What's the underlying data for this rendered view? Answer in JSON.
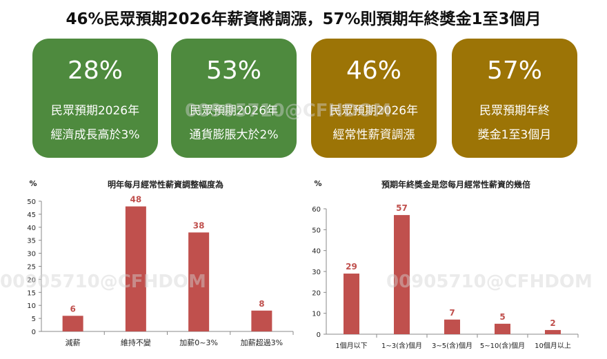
{
  "title": "46%民眾預期2026年薪資將調漲，57%則預期年終獎金1至3個月",
  "cards": [
    {
      "pct": "28%",
      "line1": "民眾預期2026年",
      "line2": "經濟成長高於3%",
      "color": "#4e8a3e"
    },
    {
      "pct": "53%",
      "line1": "民眾預期2026年",
      "line2": "通貨膨脹大於2%",
      "color": "#4e8a3e"
    },
    {
      "pct": "46%",
      "line1": "民眾預期2026年",
      "line2": "經常性薪資調漲",
      "color": "#9c7406"
    },
    {
      "pct": "57%",
      "line1": "民眾預期年終",
      "line2": "獎金1至3個月",
      "color": "#9c7406"
    }
  ],
  "watermark": "00905710@CFHDOM",
  "chart_data": [
    {
      "type": "bar",
      "title": "明年每月經常性薪資調整幅度為",
      "ylabel": "%",
      "categories": [
        "減薪",
        "維持不變",
        "加薪0~3%",
        "加薪超過3%"
      ],
      "values": [
        6,
        48,
        38,
        8
      ],
      "ylim": [
        0,
        50
      ],
      "yticks": [
        0,
        5,
        10,
        15,
        20,
        25,
        30,
        35,
        40,
        45,
        50
      ],
      "bar_color": "#c0504d",
      "label_color": "#c0504d"
    },
    {
      "type": "bar",
      "title": "預期年終獎金是您每月經常性薪資的幾倍",
      "ylabel": "%",
      "categories": [
        "1個月以下",
        "1~3(含)個月",
        "3~5(含)個月",
        "5~10(含)個月",
        "10個月以上"
      ],
      "values": [
        29,
        57,
        7,
        5,
        2
      ],
      "ylim": [
        0,
        60
      ],
      "yticks": [
        0,
        10,
        20,
        30,
        40,
        50,
        60
      ],
      "bar_color": "#c0504d",
      "label_color": "#c0504d"
    }
  ]
}
